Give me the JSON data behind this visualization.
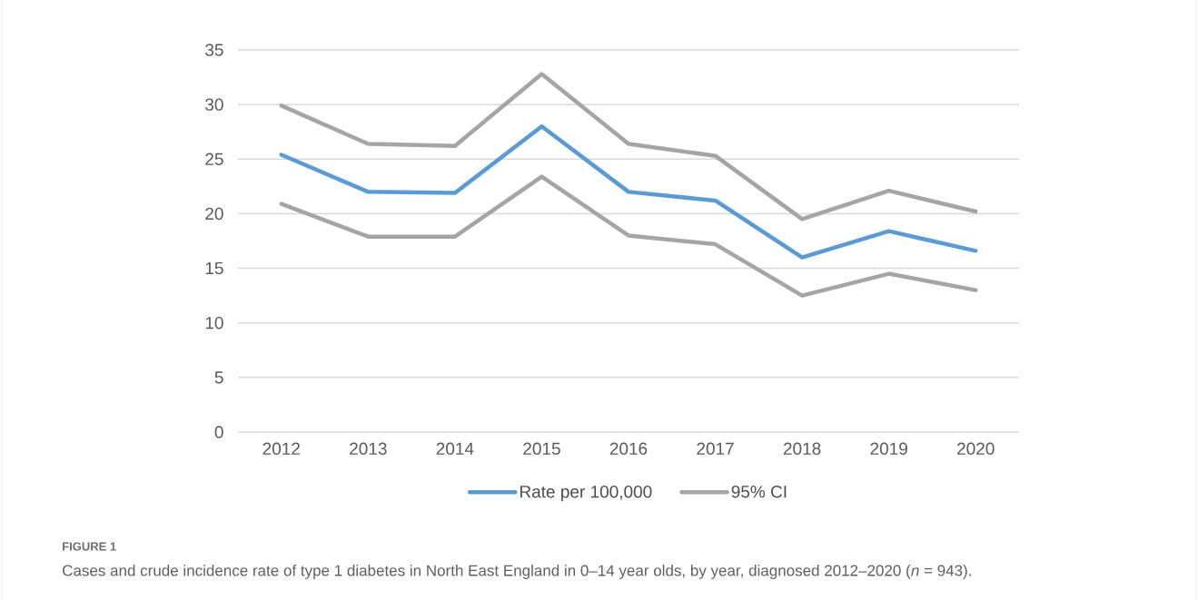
{
  "chart_data": {
    "type": "line",
    "categories": [
      "2012",
      "2013",
      "2014",
      "2015",
      "2016",
      "2017",
      "2018",
      "2019",
      "2020"
    ],
    "series": [
      {
        "name": "Rate per 100,000",
        "color": "#5b9bd5",
        "values": [
          25.4,
          22.0,
          21.9,
          28.0,
          22.0,
          21.2,
          16.0,
          18.4,
          16.6
        ]
      },
      {
        "name": "95% CI",
        "color": "#a5a5a5",
        "values": [
          29.9,
          26.4,
          26.2,
          32.8,
          26.4,
          25.3,
          19.5,
          22.1,
          20.2
        ]
      },
      {
        "color": "#a5a5a5",
        "values": [
          20.9,
          17.9,
          17.9,
          23.4,
          18.0,
          17.2,
          12.5,
          14.5,
          13.0
        ]
      }
    ],
    "ylim": [
      0,
      35
    ],
    "yticks": [
      0,
      5,
      10,
      15,
      20,
      25,
      30,
      35
    ],
    "grid": "y",
    "legend": "bottom",
    "marker": "none",
    "line_style": "solid",
    "annotations": [
      "FIGURE 1",
      "Cases and crude incidence rate of type 1 diabetes in North East England in 0–14 year olds, by year, diagnosed 2012–2020 (*n* = 943)."
    ]
  }
}
